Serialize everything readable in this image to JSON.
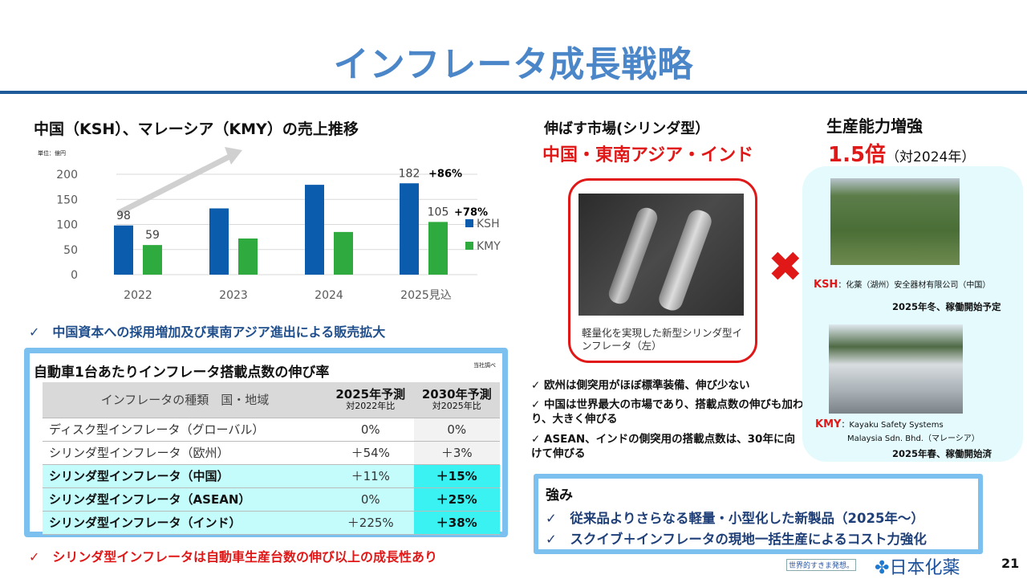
{
  "header": {
    "title": "インフレータ成長戦略"
  },
  "sales": {
    "heading": "中国（KSH）、マレーシア（KMY）の売上推移",
    "unit": "単位：億円",
    "note": "中国資本への採用増加及び東南アジア進出による販売拡大"
  },
  "chart_data": {
    "type": "bar",
    "title": "中国（KSH）、マレーシア（KMY）の売上推移",
    "categories": [
      "2022",
      "2023",
      "2024",
      "2025見込"
    ],
    "series": [
      {
        "name": "KSH",
        "color": "#0b5cad",
        "values": [
          98,
          132,
          179,
          182
        ]
      },
      {
        "name": "KMY",
        "color": "#2eaa3e",
        "values": [
          59,
          72,
          85,
          105
        ]
      }
    ],
    "data_labels": {
      "KSH_2022": "98",
      "KMY_2022": "59",
      "KSH_2025": "182",
      "KMY_2025": "105"
    },
    "annotations": [
      "+86%",
      "+78%"
    ],
    "yticks": [
      "0",
      "50",
      "100",
      "150",
      "200"
    ],
    "ylim": [
      0,
      200
    ],
    "ylabel": "単位：億円",
    "legend": "right",
    "grid": true
  },
  "table": {
    "title": "自動車1台あたりインフレータ搭載点数の伸び率",
    "source": "当社調べ",
    "headers": {
      "col1": "インフレータの種類　国・地域",
      "col2": "2025年予測",
      "col2_sub": "対2022年比",
      "col3": "2030年予測",
      "col3_sub": "対2025年比"
    },
    "rows": [
      {
        "type": "ディスク型インフレータ（グローバル）",
        "v2025": "0%",
        "v2030": "0%"
      },
      {
        "type": "シリンダ型インフレータ（欧州）",
        "v2025": "＋54%",
        "v2030": "＋3%"
      },
      {
        "type": "シリンダ型インフレータ（中国）",
        "v2025": "＋11%",
        "v2030": "＋15%"
      },
      {
        "type": "シリンダ型インフレータ（ASEAN）",
        "v2025": "0%",
        "v2030": "＋25%"
      },
      {
        "type": "シリンダ型インフレータ（インド）",
        "v2025": "＋225%",
        "v2030": "＋38%"
      }
    ],
    "note": "シリンダ型インフレータは自動車生産台数の伸び以上の成長性あり"
  },
  "market": {
    "heading": "伸ばす市場(シリンダ型）",
    "regions": "中国・東南アジア・インド",
    "photo_caption": "軽量化を実現した新型シリンダ型インフレータ（左）",
    "points": [
      "欧州は側突用がほぼ標準装備、伸び少ない",
      "中国は世界最大の市場であり、搭載点数の伸びも加わり、大きく伸びる",
      "ASEAN、インドの側突用の搭載点数は、30年に向けて伸びる"
    ]
  },
  "capacity": {
    "heading": "生産能力増強",
    "multiplier": "1.5倍",
    "basis": "（対2024年）",
    "ksh_code": "KSH",
    "ksh_name": "：化薬（湖州）安全器材有限公司（中国）",
    "ksh_status": "2025年冬、稼働開始予定",
    "kmy_code": "KMY",
    "kmy_name1": "：Kayaku Safety Systems",
    "kmy_name2": "Malaysia Sdn. Bhd.（マレーシア）",
    "kmy_status": "2025年春、稼働開始済"
  },
  "strengths": {
    "heading": "強み",
    "items": [
      "従来品よりさらなる軽量・小型化した新製品（2025年～）",
      "スクイブ＋インフレータの現地一括生産によるコスト力強化"
    ]
  },
  "footer": {
    "tagline": "世界的すきま発想。",
    "logo": "日本化薬",
    "page": "21"
  },
  "colors": {
    "accent": "#4a86c8",
    "red": "#e01818",
    "navy": "#1f4e8c"
  }
}
